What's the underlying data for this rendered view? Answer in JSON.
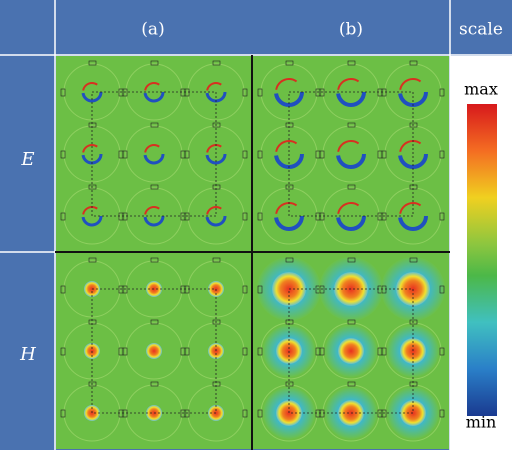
{
  "table": {
    "header": [
      "(a)",
      "(b)",
      "scale"
    ],
    "rows": [
      {
        "label": "E"
      },
      {
        "label": "H"
      }
    ]
  },
  "scale": {
    "max": "max",
    "min": "min"
  }
}
